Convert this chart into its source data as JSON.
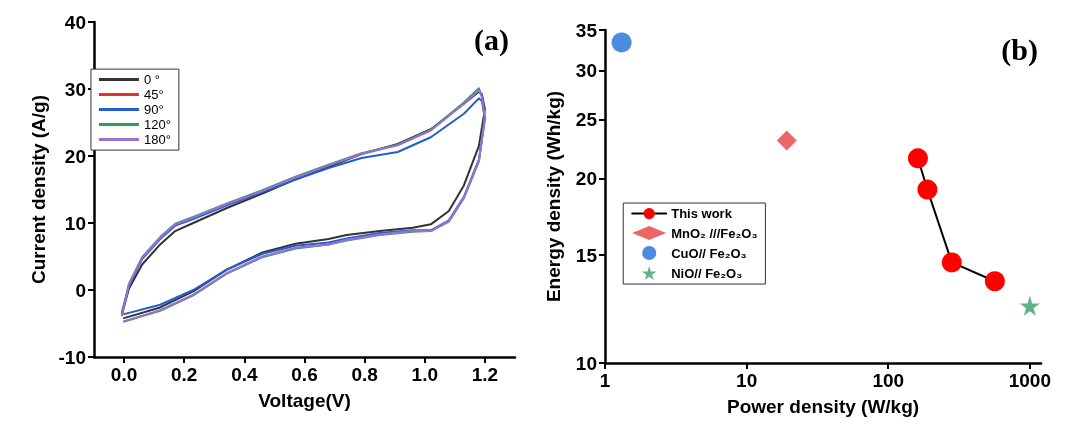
{
  "chart_data": [
    {
      "type": "line",
      "xlabel": "Voltage(V)",
      "ylabel": "Current density (A/g)",
      "annotations": [
        "(a)"
      ],
      "xlim": [
        -0.1,
        1.3
      ],
      "ylim": [
        -10,
        40
      ],
      "xticks": [
        {
          "value": 0,
          "label": "0.0"
        },
        0.2,
        0.4,
        0.6,
        0.8,
        {
          "value": 1,
          "label": "1.0"
        },
        1.2
      ],
      "yticks": [
        -10,
        0,
        10,
        20,
        30,
        40
      ],
      "grid": false,
      "legend": "top left",
      "marker": "none",
      "line_style": "solid",
      "series": [
        {
          "name": "0 °",
          "color": "#333333",
          "x": [
            0,
            0.12,
            0.23,
            0.34,
            0.46,
            0.57,
            0.68,
            0.74,
            0.85,
            0.96,
            1.02,
            1.08,
            1.13,
            1.18,
            1.2,
            1.19,
            1.18,
            1.13,
            1.02,
            0.91,
            0.79,
            0.68,
            0.57,
            0.46,
            0.34,
            0.23,
            0.17,
            0.12,
            0.06,
            0.016,
            -0.007
          ],
          "values": [
            -4.2,
            -2.6,
            -0.2,
            3.0,
            5.6,
            6.9,
            7.6,
            8.2,
            8.8,
            9.3,
            9.8,
            11.8,
            15.6,
            21.5,
            27.0,
            29.2,
            29.6,
            27.8,
            24.0,
            21.8,
            20.3,
            18.4,
            16.5,
            14.4,
            12.2,
            10.0,
            8.8,
            6.8,
            3.8,
            0.2,
            -3.6
          ]
        },
        {
          "name": "45°",
          "color": "#e03030",
          "values": [
            null,
            null,
            null,
            null,
            null,
            null,
            null,
            null,
            null,
            null,
            null,
            null,
            null,
            null,
            null,
            null,
            null,
            null,
            null,
            null,
            null,
            null,
            null,
            null,
            null,
            null,
            null,
            null,
            null,
            null,
            null
          ]
        },
        {
          "name": "90°",
          "color": "#1f5fd0",
          "x": [
            0,
            0.12,
            0.23,
            0.34,
            0.46,
            0.57,
            0.68,
            0.74,
            0.85,
            0.96,
            1.02,
            1.08,
            1.13,
            1.18,
            1.2,
            1.19,
            1.18,
            1.13,
            1.02,
            0.91,
            0.79,
            0.68,
            0.57,
            0.46,
            0.34,
            0.23,
            0.17,
            0.12,
            0.06,
            0.016,
            -0.007
          ],
          "values": [
            -3.6,
            -2.2,
            0.0,
            3.0,
            5.4,
            6.6,
            7.1,
            7.7,
            8.5,
            8.9,
            8.9,
            10.4,
            13.9,
            19.5,
            25.5,
            28.2,
            28.6,
            26.3,
            22.8,
            20.6,
            19.7,
            18.2,
            16.5,
            14.6,
            12.6,
            10.6,
            9.6,
            7.6,
            4.6,
            0.6,
            -3.2
          ]
        },
        {
          "name": "120°",
          "color": "#2e9e5e",
          "x": [
            0,
            0.12,
            0.23,
            0.34,
            0.46,
            0.57,
            0.68,
            0.74,
            0.85,
            0.96,
            1.02,
            1.08,
            1.13,
            1.18,
            1.2,
            1.19,
            1.18,
            1.13,
            1.02,
            0.91,
            0.79,
            0.68,
            0.57,
            0.46,
            0.34,
            0.23,
            0.17,
            0.12,
            0.06,
            0.016,
            -0.007
          ],
          "values": [
            -4.7,
            -3.1,
            -0.8,
            2.4,
            4.9,
            6.2,
            6.8,
            7.4,
            8.2,
            8.7,
            8.8,
            10.2,
            13.7,
            19.2,
            25.8,
            28.9,
            30.1,
            28.0,
            23.9,
            21.7,
            20.4,
            18.7,
            16.9,
            14.9,
            12.9,
            10.9,
            9.9,
            7.9,
            4.9,
            0.9,
            -3.8
          ]
        },
        {
          "name": "180°",
          "color": "#9b6fd6",
          "x": [
            0,
            0.12,
            0.23,
            0.34,
            0.46,
            0.57,
            0.68,
            0.74,
            0.85,
            0.96,
            1.02,
            1.08,
            1.13,
            1.18,
            1.2,
            1.19,
            1.18,
            1.13,
            1.02,
            0.91,
            0.79,
            0.68,
            0.57,
            0.46,
            0.34,
            0.23,
            0.17,
            0.12,
            0.06,
            0.016,
            -0.007
          ],
          "values": [
            -4.7,
            -3.0,
            -0.7,
            2.5,
            5.0,
            6.3,
            6.8,
            7.5,
            8.3,
            8.8,
            8.8,
            10.3,
            13.8,
            19.3,
            25.8,
            28.8,
            29.8,
            27.8,
            23.8,
            21.6,
            20.3,
            18.6,
            16.8,
            14.8,
            12.8,
            10.8,
            9.8,
            7.8,
            4.8,
            0.8,
            -3.7
          ]
        }
      ]
    },
    {
      "type": "scatter",
      "xlabel": "Power density (W/kg)",
      "ylabel": "Energy density (Wh/kg)",
      "annotations": [
        "(b)"
      ],
      "log": "xy",
      "xlim": [
        1,
        1200
      ],
      "ylim": [
        10,
        35
      ],
      "xticks": [
        1,
        10,
        100,
        1000
      ],
      "yticks": [
        10,
        15,
        20,
        25,
        30,
        35
      ],
      "grid": false,
      "legend": "left",
      "series": [
        {
          "name": "This work",
          "type": "line",
          "marker": "circle",
          "color": "#ff0000",
          "x": [
            162,
            189,
            281,
            566
          ],
          "values": [
            21.6,
            19.2,
            14.6,
            13.6
          ]
        },
        {
          "name": "MnO₂ ///Fe₂O₃",
          "marker": "diamond",
          "color": "#e84040",
          "x": [
            19.2
          ],
          "values": [
            23.1
          ]
        },
        {
          "name": "CuO// Fe₂O₃",
          "color": "#1f6fd8",
          "x": [
            1.31
          ],
          "values": [
            33.4
          ]
        },
        {
          "name": "NiO// Fe₂O₃",
          "marker": "star",
          "color": "#3aa066",
          "x": [
            1000
          ],
          "values": [
            12.4
          ]
        }
      ]
    }
  ]
}
